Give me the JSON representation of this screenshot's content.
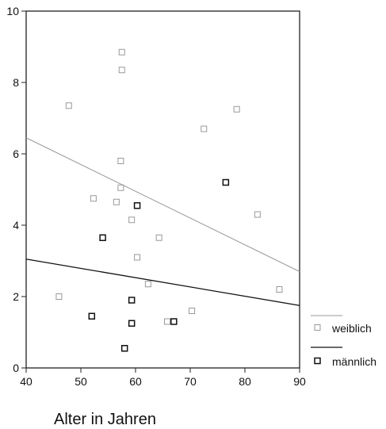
{
  "chart_data": {
    "type": "scatter",
    "xlabel": "Alter in Jahren",
    "ylabel": "",
    "xlim": [
      40,
      90
    ],
    "ylim": [
      0,
      10
    ],
    "xticks": [
      40,
      50,
      60,
      70,
      80,
      90
    ],
    "yticks": [
      0,
      2,
      4,
      6,
      8,
      10
    ],
    "grid": false,
    "legend": "right",
    "series": [
      {
        "name": "weiblich",
        "color": "#999999",
        "points": [
          [
            57.5,
            8.85
          ],
          [
            57.5,
            8.35
          ],
          [
            47.8,
            7.35
          ],
          [
            78.5,
            7.25
          ],
          [
            72.5,
            6.7
          ],
          [
            57.3,
            5.8
          ],
          [
            57.3,
            5.05
          ],
          [
            52.3,
            4.75
          ],
          [
            56.5,
            4.65
          ],
          [
            82.3,
            4.3
          ],
          [
            59.3,
            4.15
          ],
          [
            64.3,
            3.65
          ],
          [
            60.3,
            3.1
          ],
          [
            62.3,
            2.35
          ],
          [
            46.0,
            2.0
          ],
          [
            86.3,
            2.2
          ],
          [
            70.3,
            1.6
          ],
          [
            65.8,
            1.3
          ]
        ],
        "fit": {
          "y_at_40": 6.45,
          "y_at_90": 2.7
        }
      },
      {
        "name": "männlich",
        "color": "#111111",
        "points": [
          [
            76.5,
            5.2
          ],
          [
            60.3,
            4.55
          ],
          [
            54.0,
            3.65
          ],
          [
            59.3,
            1.9
          ],
          [
            52.0,
            1.45
          ],
          [
            59.3,
            1.25
          ],
          [
            67.0,
            1.3
          ],
          [
            58.0,
            0.55
          ]
        ],
        "fit": {
          "y_at_40": 3.05,
          "y_at_90": 1.75
        }
      }
    ]
  }
}
